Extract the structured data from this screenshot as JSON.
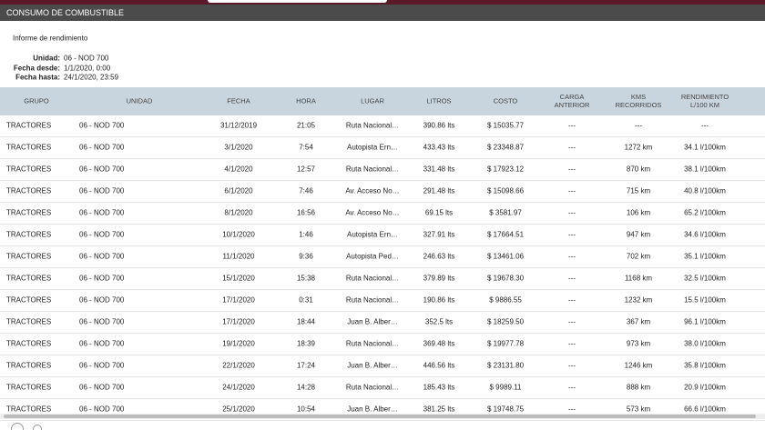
{
  "header": {
    "title": "CONSUMO DE COMBUSTIBLE"
  },
  "report": {
    "title": "Informe de rendimiento",
    "fields": [
      {
        "label": "Unidad:",
        "value": "06 - NOD 700"
      },
      {
        "label": "Fecha desde:",
        "value": "1/1/2020, 0:00"
      },
      {
        "label": "Fecha hasta:",
        "value": "24/1/2020, 23:59"
      }
    ]
  },
  "table": {
    "columns": [
      "GRUPO",
      "UNIDAD",
      "FECHA",
      "HORA",
      "LUGAR",
      "LITROS",
      "COSTO",
      "CARGA ANTERIOR",
      "KMS RECORRIDOS",
      "RENDIMIENTO L/100 KM"
    ],
    "rows": [
      [
        "TRACTORES",
        "06 - NOD 700",
        "31/12/2019",
        "21:05",
        "Ruta Nacional…",
        "390.86 lts",
        "$ 15035.77",
        "---",
        "---",
        "---"
      ],
      [
        "TRACTORES",
        "06 - NOD 700",
        "3/1/2020",
        "7:54",
        "Autopista Ern…",
        "433.43 lts",
        "$ 23348.87",
        "---",
        "1272 km",
        "34.1 l/100km"
      ],
      [
        "TRACTORES",
        "06 - NOD 700",
        "4/1/2020",
        "12:57",
        "Ruta Nacional…",
        "331.48 lts",
        "$ 17923.12",
        "---",
        "870 km",
        "38.1 l/100km"
      ],
      [
        "TRACTORES",
        "06 - NOD 700",
        "6/1/2020",
        "7:46",
        "Av. Acceso No…",
        "291.48 lts",
        "$ 15098.66",
        "---",
        "715 km",
        "40.8 l/100km"
      ],
      [
        "TRACTORES",
        "06 - NOD 700",
        "8/1/2020",
        "16:56",
        "Av. Acceso No…",
        "69.15 lts",
        "$ 3581.97",
        "---",
        "106 km",
        "65.2 l/100km"
      ],
      [
        "TRACTORES",
        "06 - NOD 700",
        "10/1/2020",
        "1:46",
        "Autopista Ern…",
        "327.91 lts",
        "$ 17664.51",
        "---",
        "947 km",
        "34.6 l/100km"
      ],
      [
        "TRACTORES",
        "06 - NOD 700",
        "11/1/2020",
        "9:36",
        "Autopista Ped…",
        "246.63 lts",
        "$ 13461.06",
        "---",
        "702 km",
        "35.1 l/100km"
      ],
      [
        "TRACTORES",
        "06 - NOD 700",
        "15/1/2020",
        "15:38",
        "Ruta Nacional…",
        "379.89 lts",
        "$ 19678.30",
        "---",
        "1168 km",
        "32.5 l/100km"
      ],
      [
        "TRACTORES",
        "06 - NOD 700",
        "17/1/2020",
        "0:31",
        "Ruta Nacional…",
        "190.86 lts",
        "$ 9886.55",
        "---",
        "1232 km",
        "15.5 l/100km"
      ],
      [
        "TRACTORES",
        "06 - NOD 700",
        "17/1/2020",
        "18:44",
        "Juan B. Alber…",
        "352.5 lts",
        "$ 18259.50",
        "---",
        "367 km",
        "96.1 l/100km"
      ],
      [
        "TRACTORES",
        "06 - NOD 700",
        "19/1/2020",
        "18:39",
        "Ruta Nacional…",
        "369.48 lts",
        "$ 19977.78",
        "---",
        "973 km",
        "38.0 l/100km"
      ],
      [
        "TRACTORES",
        "06 - NOD 700",
        "22/1/2020",
        "17:24",
        "Juan B. Alber…",
        "446.56 lts",
        "$ 23131.80",
        "---",
        "1246 km",
        "35.8 l/100km"
      ],
      [
        "TRACTORES",
        "06 - NOD 700",
        "24/1/2020",
        "14:28",
        "Ruta Nacional…",
        "185.43 lts",
        "$ 9989.11",
        "---",
        "888 km",
        "20.9 l/100km"
      ],
      [
        "TRACTORES",
        "06 - NOD 700",
        "25/1/2020",
        "10:54",
        "Juan B. Alber…",
        "381.25 lts",
        "$ 19748.75",
        "---",
        "573 km",
        "66.6 l/100km"
      ]
    ]
  }
}
